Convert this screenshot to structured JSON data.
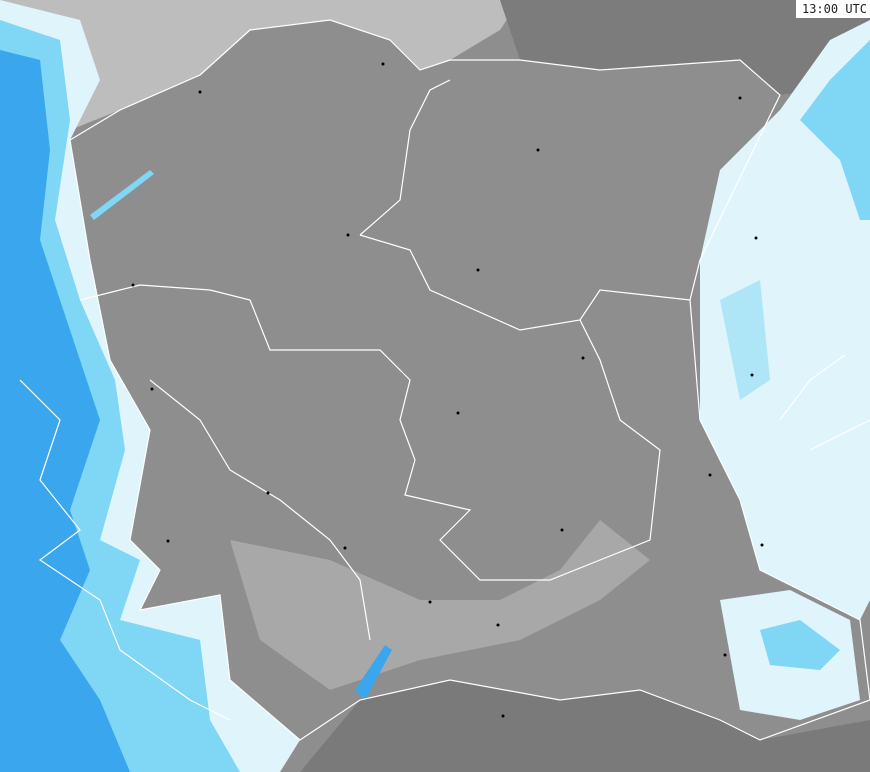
{
  "map": {
    "timestamp": "13:00 UTC",
    "colors": {
      "land_poland": "#8e8e8e",
      "land_outside": "#9a9a9a",
      "sea": "#bdbdbd",
      "dark_outside": "#7a7a7a",
      "precip_light": "#dff4fb",
      "precip_medium": "#7fd6f5",
      "precip_heavy": "#3aa6ee",
      "precip_strong": "#1e7fe0",
      "border": "#ffffff"
    }
  }
}
